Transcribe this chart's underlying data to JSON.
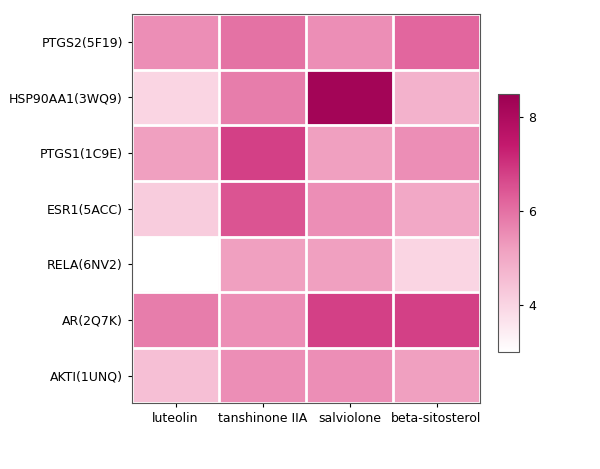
{
  "rows": [
    "PTGS2(5F19)",
    "HSP90AA1(3WQ9)",
    "PTGS1(1C9E)",
    "ESR1(5ACC)",
    "RELA(6NV2)",
    "AR(2Q7K)",
    "AKTI(1UNQ)"
  ],
  "cols": [
    "luteolin",
    "tanshinone IIA",
    "salviolone",
    "beta-sitosterol"
  ],
  "values": [
    [
      5.5,
      6.0,
      5.5,
      6.2
    ],
    [
      4.0,
      5.8,
      8.3,
      4.8
    ],
    [
      5.2,
      6.8,
      5.2,
      5.5
    ],
    [
      4.2,
      6.5,
      5.5,
      5.0
    ],
    [
      3.0,
      5.2,
      5.2,
      4.0
    ],
    [
      5.8,
      5.5,
      6.8,
      6.8
    ],
    [
      4.5,
      5.5,
      5.5,
      5.2
    ]
  ],
  "vmin": 3.0,
  "vmax": 8.5,
  "cbar_ticks": [
    4,
    6,
    8
  ],
  "cmap_colors": [
    "#ffffff",
    "#f9d0e0",
    "#f0a0c0",
    "#e0609a",
    "#c41a6e",
    "#9c0052"
  ],
  "background_color": "#ffffff",
  "tick_fontsize": 9,
  "grid_color": "#ffffff",
  "grid_linewidth": 2.0,
  "spine_color": "#555555",
  "spine_linewidth": 0.8
}
